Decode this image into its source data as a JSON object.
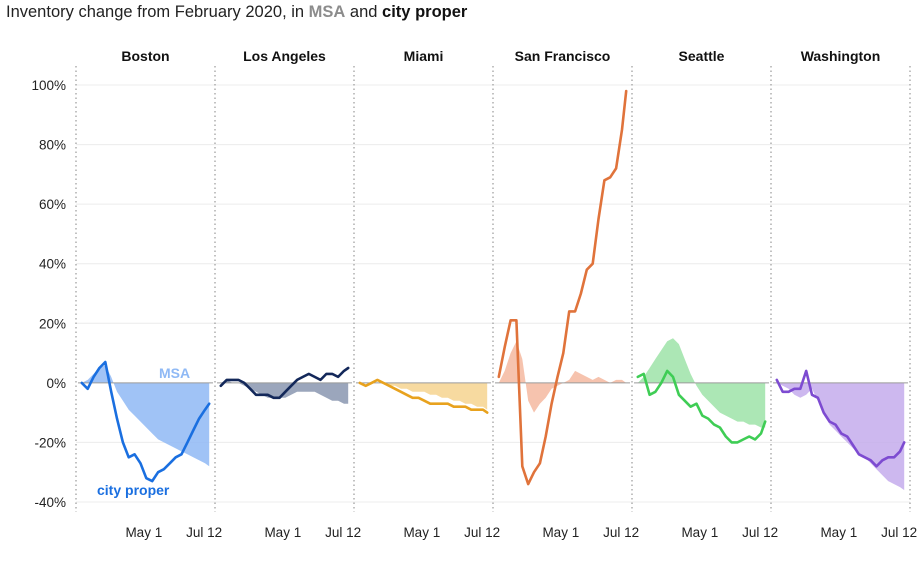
{
  "title": {
    "prefix": "Inventory change from February 2020, in ",
    "msa": "MSA",
    "middle": " and ",
    "city": "city proper"
  },
  "chart_data": {
    "type": "area",
    "title": "Inventory change from February 2020, in MSA and city proper",
    "ylim": [
      -42,
      104
    ],
    "yticks": [
      -40,
      -20,
      0,
      20,
      40,
      60,
      80,
      100
    ],
    "ytick_labels": [
      "-40%",
      "-20%",
      "0%",
      "20%",
      "40%",
      "60%",
      "80%",
      "100%"
    ],
    "x_tick_labels": [
      "May 1",
      "Jul 12"
    ],
    "x_tick_dates": [
      "2020-05-01",
      "2020-07-12"
    ],
    "x_range": [
      "2020-02-16",
      "2020-07-19"
    ],
    "series_labels": {
      "msa": "MSA",
      "city": "city proper"
    },
    "panels": [
      {
        "name": "Boston",
        "color": "#1a6fe0",
        "fill": "#8fb9f5",
        "dates": [
          "2020-02-17",
          "2020-02-24",
          "2020-03-02",
          "2020-03-09",
          "2020-03-16",
          "2020-03-23",
          "2020-03-30",
          "2020-04-06",
          "2020-04-13",
          "2020-04-20",
          "2020-04-27",
          "2020-05-04",
          "2020-05-11",
          "2020-05-18",
          "2020-05-25",
          "2020-06-01",
          "2020-06-08",
          "2020-06-15",
          "2020-06-22",
          "2020-06-29",
          "2020-07-06",
          "2020-07-13",
          "2020-07-18"
        ],
        "msa": [
          0,
          1,
          3,
          5,
          6,
          2,
          -3,
          -6,
          -9,
          -11,
          -13,
          -15,
          -17,
          -19,
          -20,
          -21,
          -22,
          -23,
          -24,
          -25,
          -26,
          -27,
          -28
        ],
        "city": [
          0,
          -2,
          2,
          5,
          7,
          -3,
          -12,
          -20,
          -25,
          -24,
          -27,
          -32,
          -33,
          -30,
          -29,
          -27,
          -25,
          -24,
          -20,
          -16,
          -12,
          -9,
          -7
        ]
      },
      {
        "name": "Los Angeles",
        "color": "#13285a",
        "fill": "#8a97b0",
        "dates": [
          "2020-02-17",
          "2020-02-24",
          "2020-03-02",
          "2020-03-09",
          "2020-03-16",
          "2020-03-23",
          "2020-03-30",
          "2020-04-06",
          "2020-04-13",
          "2020-04-20",
          "2020-04-27",
          "2020-05-04",
          "2020-05-11",
          "2020-05-18",
          "2020-05-25",
          "2020-06-01",
          "2020-06-08",
          "2020-06-15",
          "2020-06-22",
          "2020-06-29",
          "2020-07-06",
          "2020-07-13",
          "2020-07-18"
        ],
        "msa": [
          0,
          1,
          0,
          0,
          -1,
          -2,
          -3,
          -4,
          -5,
          -5,
          -5,
          -5,
          -4,
          -3,
          -3,
          -3,
          -3,
          -4,
          -5,
          -6,
          -6,
          -7,
          -7
        ],
        "city": [
          -1,
          1,
          1,
          1,
          0,
          -2,
          -4,
          -4,
          -4,
          -5,
          -5,
          -3,
          -1,
          1,
          2,
          3,
          2,
          1,
          3,
          3,
          2,
          4,
          5
        ]
      },
      {
        "name": "Miami",
        "color": "#e8a21e",
        "fill": "#f6d38f",
        "dates": [
          "2020-02-17",
          "2020-02-24",
          "2020-03-02",
          "2020-03-09",
          "2020-03-16",
          "2020-03-23",
          "2020-03-30",
          "2020-04-06",
          "2020-04-13",
          "2020-04-20",
          "2020-04-27",
          "2020-05-04",
          "2020-05-11",
          "2020-05-18",
          "2020-05-25",
          "2020-06-01",
          "2020-06-08",
          "2020-06-15",
          "2020-06-22",
          "2020-06-29",
          "2020-07-06",
          "2020-07-13",
          "2020-07-18"
        ],
        "msa": [
          0,
          0,
          0,
          0,
          0,
          -1,
          -1,
          -2,
          -2,
          -3,
          -3,
          -3,
          -4,
          -4,
          -5,
          -5,
          -6,
          -6,
          -7,
          -7,
          -8,
          -8,
          -9
        ],
        "city": [
          0,
          -1,
          0,
          1,
          0,
          -1,
          -2,
          -3,
          -4,
          -5,
          -5,
          -6,
          -7,
          -7,
          -7,
          -7,
          -8,
          -8,
          -8,
          -9,
          -9,
          -9,
          -10
        ]
      },
      {
        "name": "San Francisco",
        "color": "#e0733b",
        "fill": "#f4b9a0",
        "dates": [
          "2020-02-17",
          "2020-02-24",
          "2020-03-02",
          "2020-03-09",
          "2020-03-16",
          "2020-03-23",
          "2020-03-30",
          "2020-04-06",
          "2020-04-13",
          "2020-04-20",
          "2020-04-27",
          "2020-05-04",
          "2020-05-11",
          "2020-05-18",
          "2020-05-25",
          "2020-06-01",
          "2020-06-08",
          "2020-06-15",
          "2020-06-22",
          "2020-06-29",
          "2020-07-06",
          "2020-07-13",
          "2020-07-18"
        ],
        "msa": [
          0,
          4,
          10,
          14,
          8,
          -6,
          -10,
          -7,
          -5,
          -2,
          -1,
          0,
          1,
          4,
          3,
          2,
          1,
          2,
          1,
          0,
          1,
          1,
          0
        ],
        "city": [
          2,
          12,
          21,
          21,
          -28,
          -34,
          -30,
          -27,
          -18,
          -7,
          2,
          10,
          24,
          24,
          30,
          38,
          40,
          55,
          68,
          69,
          72,
          85,
          98
        ]
      },
      {
        "name": "Seattle",
        "color": "#3fcd55",
        "fill": "#9ee3a8",
        "dates": [
          "2020-02-17",
          "2020-02-24",
          "2020-03-02",
          "2020-03-09",
          "2020-03-16",
          "2020-03-23",
          "2020-03-30",
          "2020-04-06",
          "2020-04-13",
          "2020-04-20",
          "2020-04-27",
          "2020-05-04",
          "2020-05-11",
          "2020-05-18",
          "2020-05-25",
          "2020-06-01",
          "2020-06-08",
          "2020-06-15",
          "2020-06-22",
          "2020-06-29",
          "2020-07-06",
          "2020-07-13",
          "2020-07-18"
        ],
        "msa": [
          0,
          2,
          5,
          8,
          11,
          14,
          15,
          13,
          8,
          3,
          -1,
          -4,
          -6,
          -8,
          -10,
          -11,
          -12,
          -13,
          -13,
          -14,
          -14,
          -15,
          -15
        ],
        "city": [
          2,
          3,
          -4,
          -3,
          0,
          4,
          2,
          -4,
          -6,
          -8,
          -7,
          -11,
          -12,
          -14,
          -15,
          -18,
          -20,
          -20,
          -19,
          -18,
          -19,
          -17,
          -13
        ]
      },
      {
        "name": "Washington",
        "color": "#7d4bd1",
        "fill": "#c4abec",
        "dates": [
          "2020-02-17",
          "2020-02-24",
          "2020-03-02",
          "2020-03-09",
          "2020-03-16",
          "2020-03-23",
          "2020-03-30",
          "2020-04-06",
          "2020-04-13",
          "2020-04-20",
          "2020-04-27",
          "2020-05-04",
          "2020-05-11",
          "2020-05-18",
          "2020-05-25",
          "2020-06-01",
          "2020-06-08",
          "2020-06-15",
          "2020-06-22",
          "2020-06-29",
          "2020-07-06",
          "2020-07-13",
          "2020-07-18"
        ],
        "msa": [
          0,
          -1,
          -2,
          -4,
          -5,
          -4,
          -2,
          -6,
          -10,
          -14,
          -16,
          -18,
          -20,
          -22,
          -24,
          -25,
          -27,
          -29,
          -31,
          -33,
          -34,
          -35,
          -36
        ],
        "city": [
          1,
          -3,
          -3,
          -2,
          -2,
          4,
          -4,
          -5,
          -10,
          -13,
          -14,
          -17,
          -18,
          -21,
          -24,
          -25,
          -26,
          -28,
          -26,
          -25,
          -25,
          -23,
          -20
        ]
      }
    ],
    "legend": {
      "placement": "annotations in Boston panel"
    },
    "grid": true
  }
}
